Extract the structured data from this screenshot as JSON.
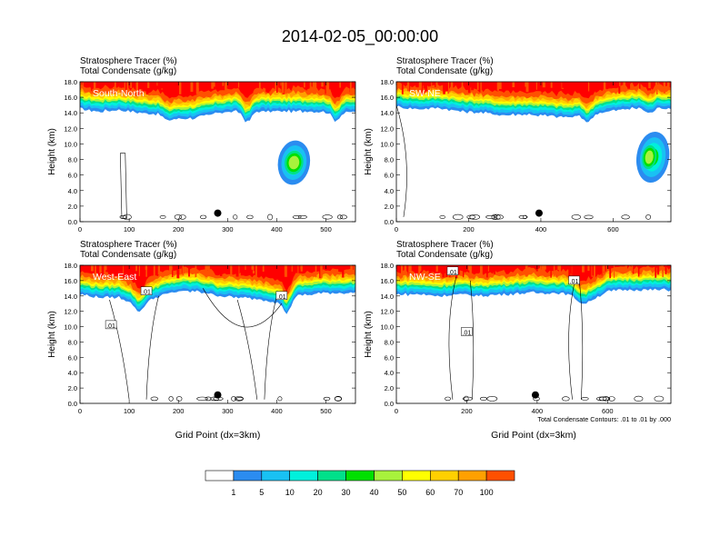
{
  "figure": {
    "title": "2014-02-05_00:00:00"
  },
  "chart_data": {
    "type": "heatmap",
    "title": "2014-02-05_00:00:00",
    "colorbar": {
      "levels": [
        1,
        5,
        10,
        20,
        30,
        40,
        50,
        60,
        70,
        100
      ],
      "colors": [
        "#ffffff",
        "#2b8cf0",
        "#19c1f3",
        "#00f0dc",
        "#00e08a",
        "#00e000",
        "#a8f23c",
        "#ffff00",
        "#ffd000",
        "#ffa000",
        "#ff5000",
        "#ff0000"
      ]
    },
    "panels": [
      {
        "id": "south-north",
        "label": "South-North",
        "line1": "Stratosphere Tracer   (%)",
        "line2": "Total Condensate   (g/kg)",
        "ylabel": "Height (km)",
        "xlabel": "",
        "xlim": [
          0,
          560
        ],
        "ylim": [
          0,
          18
        ],
        "xticks": [
          0,
          100,
          200,
          300,
          400,
          500
        ],
        "yticks": [
          0.0,
          2.0,
          4.0,
          6.0,
          8.0,
          10.0,
          12.0,
          14.0,
          16.0,
          18.0
        ],
        "base_x": [
          0,
          40,
          80,
          120,
          160,
          200,
          240,
          280,
          320,
          360,
          400,
          440,
          480,
          520,
          560
        ],
        "base_z": [
          14.5,
          14.2,
          14.4,
          14.0,
          13.8,
          13.2,
          13.4,
          14.0,
          14.2,
          14.2,
          14.2,
          14.2,
          14.2,
          14.1,
          14.1
        ],
        "dips": [
          {
            "x": 180,
            "z": 13.0
          },
          {
            "x": 340,
            "z": 12.8
          },
          {
            "x": 520,
            "z": 13.0
          }
        ],
        "blobs": [
          {
            "x": 435,
            "y": 7.6,
            "w": 65,
            "h": 1.3,
            "level": 0
          },
          {
            "x": 435,
            "y": 7.6,
            "w": 38,
            "h": 0.7,
            "level": 2
          }
        ],
        "contour_labels": [],
        "dot": {
          "x": 280,
          "y": 1.1
        },
        "footer_note": ""
      },
      {
        "id": "sw-ne",
        "label": "SW-NE",
        "line1": "Stratosphere Tracer   (%)",
        "line2": "Total Condensate   (g/kg)",
        "ylabel": "Height (km)",
        "xlabel": "",
        "xlim": [
          0,
          760
        ],
        "ylim": [
          0,
          18
        ],
        "xticks": [
          0,
          200,
          400,
          600
        ],
        "yticks": [
          0.0,
          2.0,
          4.0,
          6.0,
          8.0,
          10.0,
          12.0,
          14.0,
          16.0,
          18.0
        ],
        "base_x": [
          0,
          60,
          120,
          180,
          240,
          300,
          360,
          420,
          480,
          540,
          600,
          660,
          720,
          760
        ],
        "base_z": [
          14.8,
          14.5,
          14.6,
          14.2,
          14.0,
          13.7,
          13.8,
          13.6,
          13.4,
          13.8,
          14.3,
          14.6,
          14.6,
          14.6
        ],
        "dips": [
          {
            "x": 530,
            "z": 12.8
          },
          {
            "x": 700,
            "z": 14.0
          }
        ],
        "blobs": [
          {
            "x": 710,
            "y": 8.3,
            "w": 90,
            "h": 1.5,
            "level": 0
          },
          {
            "x": 700,
            "y": 8.3,
            "w": 40,
            "h": 0.7,
            "level": 2
          }
        ],
        "contour_labels": [],
        "dot": {
          "x": 395,
          "y": 1.1
        },
        "footer_note": ""
      },
      {
        "id": "west-east",
        "label": "West-East",
        "line1": "Stratosphere Tracer   (%)",
        "line2": "Total Condensate   (g/kg)",
        "ylabel": "Height (km)",
        "xlabel": "Grid Point (dx=3km)",
        "xlim": [
          0,
          560
        ],
        "ylim": [
          0,
          18
        ],
        "xticks": [
          0,
          100,
          200,
          300,
          400,
          500
        ],
        "yticks": [
          0.0,
          2.0,
          4.0,
          6.0,
          8.0,
          10.0,
          12.0,
          14.0,
          16.0,
          18.0
        ],
        "base_x": [
          0,
          40,
          80,
          120,
          160,
          200,
          240,
          280,
          320,
          360,
          400,
          440,
          480,
          520,
          560
        ],
        "base_z": [
          14.2,
          13.8,
          13.8,
          12.8,
          14.0,
          14.6,
          14.6,
          14.0,
          13.8,
          13.6,
          13.2,
          14.0,
          14.3,
          14.4,
          14.4
        ],
        "dips": [
          {
            "x": 120,
            "z": 12.0
          },
          {
            "x": 420,
            "z": 11.8
          }
        ],
        "blobs": [],
        "contour_labels": [
          {
            "x": 63,
            "y": 10.2,
            "text": ".01"
          },
          {
            "x": 135,
            "y": 14.6,
            "text": ".01"
          },
          {
            "x": 410,
            "y": 14.0,
            "text": ".01"
          }
        ],
        "dot": {
          "x": 280,
          "y": 1.1
        },
        "footer_note": ""
      },
      {
        "id": "nw-se",
        "label": "NW-SE",
        "line1": "Stratosphere Tracer   (%)",
        "line2": "Total Condensate   (g/kg)",
        "ylabel": "Height (km)",
        "xlabel": "Grid Point (dx=3km)",
        "xlim": [
          0,
          780
        ],
        "ylim": [
          0,
          18
        ],
        "xticks": [
          0,
          200,
          400,
          600
        ],
        "yticks": [
          0.0,
          2.0,
          4.0,
          6.0,
          8.0,
          10.0,
          12.0,
          14.0,
          16.0,
          18.0
        ],
        "base_x": [
          0,
          60,
          120,
          180,
          240,
          300,
          360,
          420,
          480,
          540,
          600,
          660,
          720,
          780
        ],
        "base_z": [
          14.2,
          14.2,
          14.0,
          14.2,
          14.0,
          14.2,
          14.4,
          14.4,
          14.3,
          13.2,
          14.6,
          14.8,
          14.8,
          14.8
        ],
        "dips": [
          {
            "x": 530,
            "z": 13.0
          }
        ],
        "blobs": [],
        "contour_labels": [
          {
            "x": 160,
            "y": 17.2,
            "text": ".01"
          },
          {
            "x": 200,
            "y": 9.3,
            "text": ".01"
          },
          {
            "x": 505,
            "y": 16.0,
            "text": ".01"
          }
        ],
        "dot": {
          "x": 395,
          "y": 1.1
        },
        "footer_note": "Total Condensate Contours: .01 to .01 by .000"
      }
    ]
  }
}
